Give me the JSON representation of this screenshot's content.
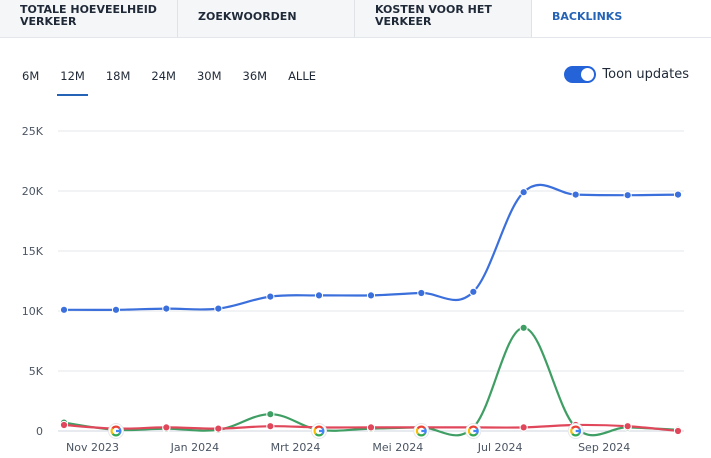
{
  "tabs": [
    {
      "line1": "TOTALE HOEVEELHEID",
      "line2": "VERKEER"
    },
    {
      "line1": "ZOEKWOORDEN",
      "line2": ""
    },
    {
      "line1": "KOSTEN VOOR HET",
      "line2": "VERKEER"
    },
    {
      "line1": "BACKLINKS",
      "line2": ""
    }
  ],
  "ranges": [
    "6M",
    "12M",
    "18M",
    "24M",
    "30M",
    "36M",
    "ALLE"
  ],
  "active_range": "12M",
  "toggle": {
    "label": "Toon updates",
    "on": true
  },
  "colors": {
    "blue": "#3b6fdc",
    "green": "#3f9e63",
    "red": "#e0475a",
    "accent": "#2563b6"
  },
  "chart_data": {
    "type": "line",
    "ylim": [
      0,
      25000
    ],
    "yticks": [
      "25K",
      "20K",
      "15K",
      "10K",
      "5K",
      "0"
    ],
    "xticks": [
      "Nov 2023",
      "Jan 2024",
      "Mrt 2024",
      "Mei 2024",
      "Jul 2024",
      "Sep 2024"
    ],
    "x": [
      "2023-10-15",
      "2023-11-15",
      "2023-12-15",
      "2024-01-15",
      "2024-02-15",
      "2024-03-15",
      "2024-04-15",
      "2024-05-15",
      "2024-06-15",
      "2024-07-15",
      "2024-08-15",
      "2024-09-15",
      "2024-10-15"
    ],
    "series": [
      {
        "color": "#3b6fdc",
        "values": [
          10100,
          10100,
          10200,
          10200,
          11200,
          11300,
          11300,
          11500,
          11600,
          19900,
          19700,
          19650,
          19700
        ]
      },
      {
        "color": "#3f9e63",
        "values": [
          700,
          100,
          200,
          100,
          1400,
          100,
          200,
          300,
          300,
          8600,
          300,
          300,
          100
        ]
      },
      {
        "color": "#e0475a",
        "values": [
          500,
          200,
          300,
          200,
          400,
          300,
          300,
          300,
          300,
          300,
          500,
          400,
          0
        ]
      }
    ],
    "update_markers": [
      "2023-11-15",
      "2024-03-15",
      "2024-05-15",
      "2024-06-15",
      "2024-08-15"
    ],
    "update_marker_icon": "google-icon"
  }
}
